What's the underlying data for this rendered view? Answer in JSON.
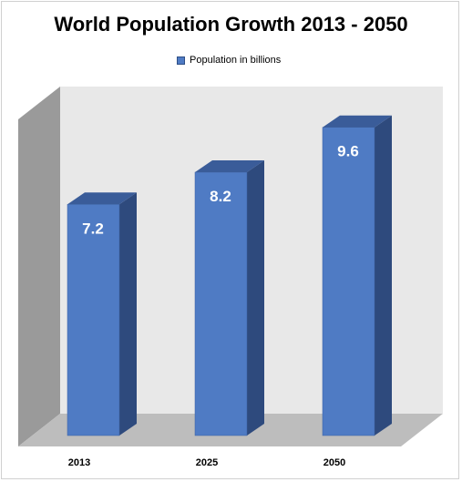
{
  "chart_data": {
    "type": "bar",
    "title": "World Population Growth 2013 - 2050",
    "categories": [
      "2013",
      "2025",
      "2050"
    ],
    "series": [
      {
        "name": "Population in billions",
        "values": [
          7.2,
          8.2,
          9.6
        ]
      }
    ],
    "data_labels": [
      "7.2",
      "8.2",
      "9.6"
    ],
    "ylim": [
      0,
      10.5
    ],
    "grid": false,
    "legend": "top",
    "style": "3d-column",
    "colors": {
      "bar_front": "#4f7bc4",
      "bar_top": "#3a5c99",
      "bar_side": "#2e4a7d"
    }
  }
}
